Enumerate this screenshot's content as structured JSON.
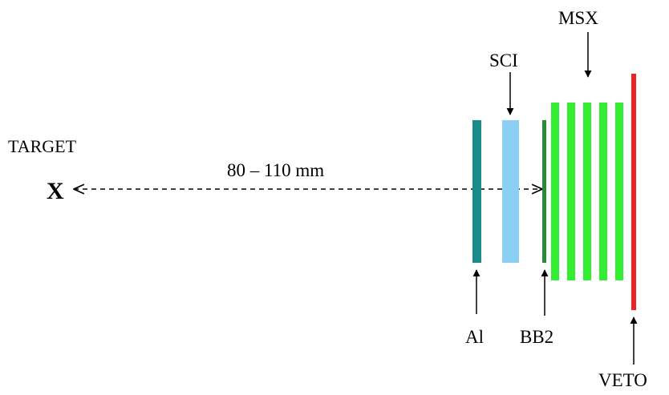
{
  "labels": {
    "target": "TARGET",
    "target_marker": "X",
    "distance": "80 – 110  mm",
    "sci": "SCI",
    "msx": "MSX",
    "al": "Al",
    "bb2": "BB2",
    "veto": "VETO"
  },
  "colors": {
    "al": "#1a8a8a",
    "sci": "#8ccff5",
    "bb2": "#2a8a3a",
    "msx": "#33ee33",
    "veto": "#ee2222",
    "line": "#000000"
  }
}
